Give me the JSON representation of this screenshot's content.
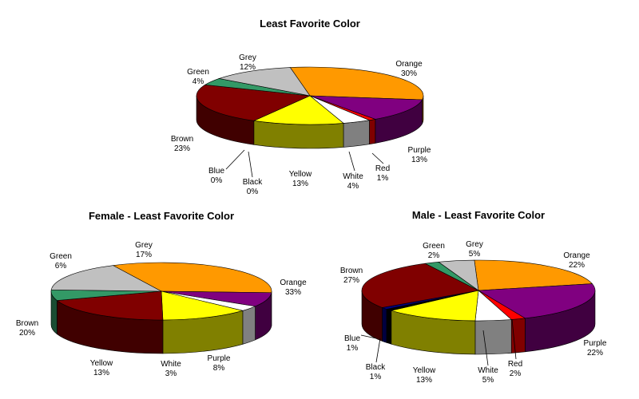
{
  "chart_data": [
    {
      "type": "pie",
      "title": "Least Favorite Color",
      "slices": [
        {
          "name": "Orange",
          "value": 30,
          "label": "30%",
          "color": "#FF9900"
        },
        {
          "name": "Purple",
          "value": 13,
          "label": "13%",
          "color": "#800080"
        },
        {
          "name": "Red",
          "value": 1,
          "label": "1%",
          "color": "#FF0000"
        },
        {
          "name": "White",
          "value": 4,
          "label": "4%",
          "color": "#FFFFFF"
        },
        {
          "name": "Yellow",
          "value": 13,
          "label": "13%",
          "color": "#FFFF00"
        },
        {
          "name": "Black",
          "value": 0,
          "label": "0%",
          "color": "#000000"
        },
        {
          "name": "Blue",
          "value": 0,
          "label": "0%",
          "color": "#000080"
        },
        {
          "name": "Brown",
          "value": 23,
          "label": "23%",
          "color": "#800000"
        },
        {
          "name": "Green",
          "value": 4,
          "label": "4%",
          "color": "#339966"
        },
        {
          "name": "Grey",
          "value": 12,
          "label": "12%",
          "color": "#C0C0C0"
        }
      ]
    },
    {
      "type": "pie",
      "title": "Female - Least Favorite Color",
      "slices": [
        {
          "name": "Orange",
          "value": 33,
          "label": "33%",
          "color": "#FF9900"
        },
        {
          "name": "Purple",
          "value": 8,
          "label": "8%",
          "color": "#800080"
        },
        {
          "name": "White",
          "value": 3,
          "label": "3%",
          "color": "#FFFFFF"
        },
        {
          "name": "Yellow",
          "value": 13,
          "label": "13%",
          "color": "#FFFF00"
        },
        {
          "name": "Brown",
          "value": 20,
          "label": "20%",
          "color": "#800000"
        },
        {
          "name": "Green",
          "value": 6,
          "label": "6%",
          "color": "#339966"
        },
        {
          "name": "Grey",
          "value": 17,
          "label": "17%",
          "color": "#C0C0C0"
        }
      ]
    },
    {
      "type": "pie",
      "title": "Male - Least Favorite Color",
      "slices": [
        {
          "name": "Orange",
          "value": 22,
          "label": "22%",
          "color": "#FF9900"
        },
        {
          "name": "Purple",
          "value": 22,
          "label": "22%",
          "color": "#800080"
        },
        {
          "name": "Red",
          "value": 2,
          "label": "2%",
          "color": "#FF0000"
        },
        {
          "name": "White",
          "value": 5,
          "label": "5%",
          "color": "#FFFFFF"
        },
        {
          "name": "Yellow",
          "value": 13,
          "label": "13%",
          "color": "#FFFF00"
        },
        {
          "name": "Black",
          "value": 1,
          "label": "1%",
          "color": "#000000"
        },
        {
          "name": "Blue",
          "value": 1,
          "label": "1%",
          "color": "#000080"
        },
        {
          "name": "Brown",
          "value": 27,
          "label": "27%",
          "color": "#800000"
        },
        {
          "name": "Green",
          "value": 2,
          "label": "2%",
          "color": "#339966"
        },
        {
          "name": "Grey",
          "value": 5,
          "label": "5%",
          "color": "#C0C0C0"
        }
      ]
    }
  ]
}
